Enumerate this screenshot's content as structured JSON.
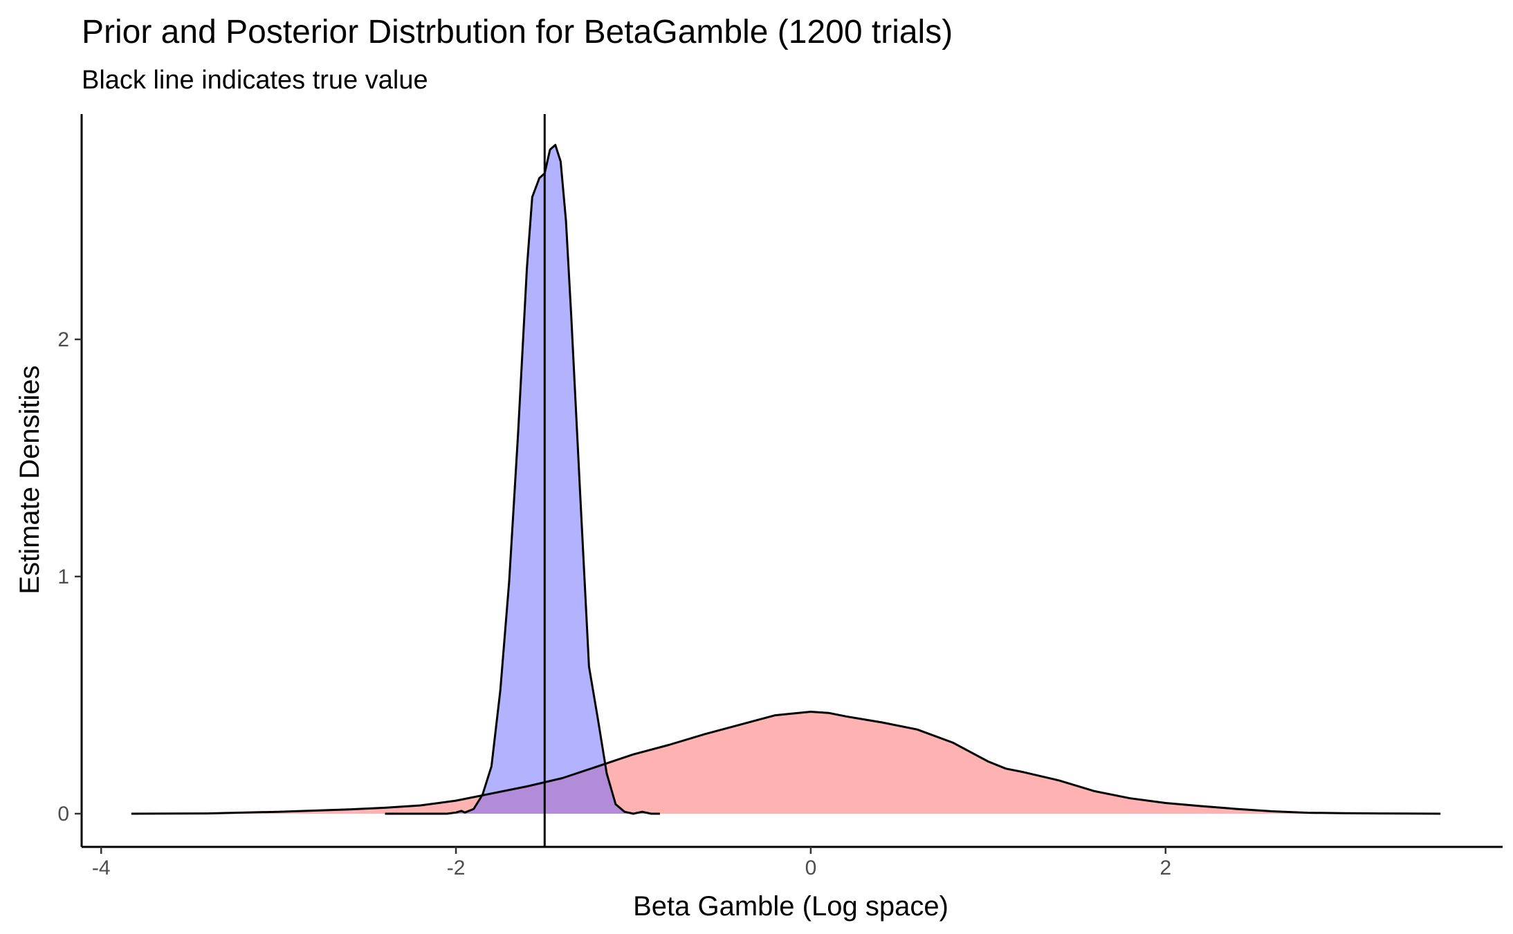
{
  "chart_data": {
    "type": "area",
    "title": "Prior and Posterior Distrbution for BetaGamble (1200 trials)",
    "subtitle": "Black line indicates true value",
    "xlabel": "Beta Gamble (Log space)",
    "ylabel": "Estimate Densities",
    "xlim": [
      -4.11,
      3.9
    ],
    "ylim": [
      -0.14,
      2.95
    ],
    "x_ticks": [
      -4,
      -2,
      0,
      2
    ],
    "x_tick_labels": [
      "-4",
      "-2",
      "0",
      "2"
    ],
    "y_ticks": [
      0,
      1,
      2
    ],
    "y_tick_labels": [
      "0",
      "1",
      "2"
    ],
    "grid": false,
    "legend": "none",
    "reference_line": {
      "x": -1.5,
      "color": "#000000"
    },
    "series": [
      {
        "fill": "#FF6666",
        "fill_opacity": 0.5,
        "stroke": "#000000",
        "x": [
          -3.83,
          -3.4,
          -3.0,
          -2.6,
          -2.4,
          -2.2,
          -2.0,
          -1.8,
          -1.6,
          -1.4,
          -1.2,
          -1.0,
          -0.8,
          -0.6,
          -0.4,
          -0.2,
          0.0,
          0.1,
          0.2,
          0.4,
          0.6,
          0.8,
          1.0,
          1.1,
          1.2,
          1.4,
          1.6,
          1.8,
          2.0,
          2.2,
          2.4,
          2.6,
          2.8,
          3.0,
          3.2,
          3.55
        ],
        "values": [
          0.0,
          0.001,
          0.008,
          0.018,
          0.025,
          0.035,
          0.055,
          0.085,
          0.115,
          0.15,
          0.2,
          0.25,
          0.29,
          0.335,
          0.375,
          0.415,
          0.43,
          0.425,
          0.41,
          0.385,
          0.355,
          0.3,
          0.22,
          0.19,
          0.175,
          0.14,
          0.095,
          0.065,
          0.045,
          0.032,
          0.02,
          0.01,
          0.004,
          0.002,
          0.001,
          0.0
        ]
      },
      {
        "fill": "#6666FF",
        "fill_opacity": 0.5,
        "stroke": "#000000",
        "x": [
          -2.4,
          -2.05,
          -2.0,
          -1.97,
          -1.95,
          -1.9,
          -1.85,
          -1.8,
          -1.75,
          -1.7,
          -1.65,
          -1.6,
          -1.57,
          -1.53,
          -1.5,
          -1.47,
          -1.44,
          -1.41,
          -1.38,
          -1.35,
          -1.3,
          -1.25,
          -1.2,
          -1.15,
          -1.1,
          -1.05,
          -1.0,
          -0.95,
          -0.9,
          -0.85
        ],
        "values": [
          0.0,
          0.0,
          0.005,
          0.012,
          0.005,
          0.02,
          0.08,
          0.2,
          0.52,
          0.98,
          1.6,
          2.3,
          2.6,
          2.68,
          2.7,
          2.8,
          2.82,
          2.75,
          2.5,
          2.1,
          1.35,
          0.62,
          0.4,
          0.17,
          0.04,
          0.008,
          0.0,
          0.008,
          0.0,
          0.0
        ]
      }
    ]
  }
}
